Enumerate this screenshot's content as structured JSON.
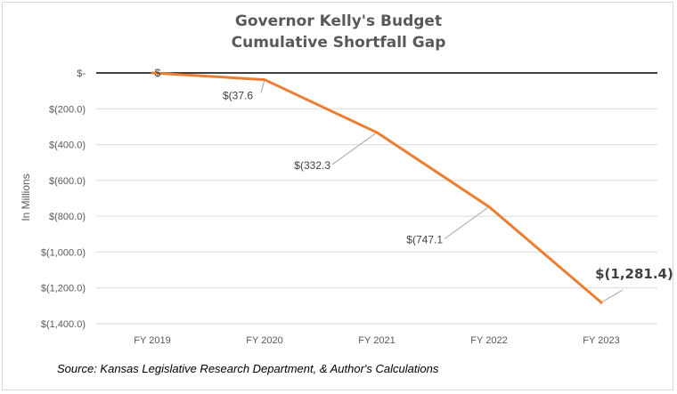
{
  "chart_data": {
    "type": "line",
    "title": "Governor Kelly's Budget",
    "subtitle": "Cumulative Shortfall Gap",
    "ylabel": "In Millions",
    "xlabel": "",
    "categories": [
      "FY 2019",
      "FY 2020",
      "FY 2021",
      "FY 2022",
      "FY 2023"
    ],
    "values": [
      0,
      -37.6,
      -332.3,
      -747.1,
      -1281.4
    ],
    "data_labels": [
      "$",
      "$(37.6",
      "$(332.3",
      "$(747.1",
      "$(1,281.4)"
    ],
    "yticks": [
      {
        "value": 0,
        "label": "$-"
      },
      {
        "value": -200,
        "label": "$(200.0)"
      },
      {
        "value": -400,
        "label": "$(400.0)"
      },
      {
        "value": -600,
        "label": "$(600.0)"
      },
      {
        "value": -800,
        "label": "$(800.0)"
      },
      {
        "value": -1000,
        "label": "$(1,000.0)"
      },
      {
        "value": -1200,
        "label": "$(1,200.0)"
      },
      {
        "value": -1400,
        "label": "$(1,400.0)"
      }
    ],
    "ylim": [
      -1400,
      0
    ],
    "grid": true,
    "legend": "none",
    "line_color": "#ed7d31",
    "source": "Source: Kansas Legislative Research Department, & Author's Calculations"
  }
}
